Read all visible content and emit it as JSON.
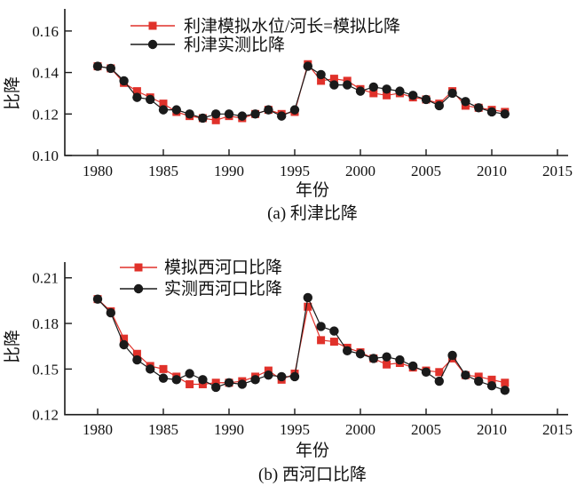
{
  "colors": {
    "simulated": "#e0312a",
    "observed": "#1a1a1a",
    "axis": "#1a1a1a",
    "background": "#ffffff"
  },
  "chart_data": [
    {
      "type": "line",
      "title": "(a) 利津比降",
      "xlabel": "年份",
      "ylabel": "比降",
      "grid": false,
      "legend_position": "top-inside",
      "xlim": [
        1977.5,
        2015.8
      ],
      "ylim": [
        0.1,
        0.17
      ],
      "xticks": [
        1980,
        1985,
        1990,
        1995,
        2000,
        2005,
        2010,
        2015
      ],
      "yticks": [
        "0.10",
        "0.12",
        "0.14",
        "0.16"
      ],
      "x": [
        1980,
        1981,
        1982,
        1983,
        1984,
        1985,
        1986,
        1987,
        1988,
        1989,
        1990,
        1991,
        1992,
        1993,
        1994,
        1995,
        1996,
        1997,
        1998,
        1999,
        2000,
        2001,
        2002,
        2003,
        2004,
        2005,
        2006,
        2007,
        2008,
        2009,
        2010,
        2011
      ],
      "series": [
        {
          "name": "利津模拟水位/河长=模拟比降",
          "marker": "square",
          "color": "#e0312a",
          "values": [
            0.143,
            0.142,
            0.135,
            0.131,
            0.128,
            0.125,
            0.121,
            0.119,
            0.118,
            0.117,
            0.119,
            0.118,
            0.12,
            0.122,
            0.12,
            0.121,
            0.144,
            0.136,
            0.137,
            0.136,
            0.132,
            0.13,
            0.129,
            0.13,
            0.128,
            0.127,
            0.125,
            0.131,
            0.124,
            0.123,
            0.122,
            0.121
          ]
        },
        {
          "name": "利津实测比降",
          "marker": "circle",
          "color": "#1a1a1a",
          "values": [
            0.143,
            0.142,
            0.136,
            0.128,
            0.127,
            0.122,
            0.122,
            0.12,
            0.118,
            0.12,
            0.12,
            0.119,
            0.12,
            0.122,
            0.119,
            0.122,
            0.143,
            0.139,
            0.134,
            0.134,
            0.131,
            0.133,
            0.132,
            0.131,
            0.129,
            0.127,
            0.124,
            0.13,
            0.126,
            0.123,
            0.121,
            0.12
          ]
        }
      ]
    },
    {
      "type": "line",
      "title": "(b) 西河口比降",
      "xlabel": "年份",
      "ylabel": "比降",
      "grid": false,
      "legend_position": "top-inside",
      "xlim": [
        1977.5,
        2015.8
      ],
      "ylim": [
        0.12,
        0.22
      ],
      "xticks": [
        1980,
        1985,
        1990,
        1995,
        2000,
        2005,
        2010,
        2015
      ],
      "yticks": [
        "0.12",
        "0.15",
        "0.18",
        "0.21"
      ],
      "x": [
        1980,
        1981,
        1982,
        1983,
        1984,
        1985,
        1986,
        1987,
        1988,
        1989,
        1990,
        1991,
        1992,
        1993,
        1994,
        1995,
        1996,
        1997,
        1998,
        1999,
        2000,
        2001,
        2002,
        2003,
        2004,
        2005,
        2006,
        2007,
        2008,
        2009,
        2010,
        2011
      ],
      "series": [
        {
          "name": "模拟西河口比降",
          "marker": "square",
          "color": "#e0312a",
          "values": [
            0.196,
            0.188,
            0.17,
            0.16,
            0.152,
            0.15,
            0.145,
            0.14,
            0.14,
            0.141,
            0.141,
            0.142,
            0.145,
            0.149,
            0.143,
            0.147,
            0.191,
            0.169,
            0.168,
            0.164,
            0.161,
            0.157,
            0.153,
            0.154,
            0.151,
            0.149,
            0.148,
            0.157,
            0.146,
            0.145,
            0.143,
            0.141
          ]
        },
        {
          "name": "实测西河口比降",
          "marker": "circle",
          "color": "#1a1a1a",
          "values": [
            0.196,
            0.187,
            0.166,
            0.156,
            0.15,
            0.144,
            0.143,
            0.147,
            0.143,
            0.138,
            0.141,
            0.14,
            0.143,
            0.146,
            0.145,
            0.145,
            0.197,
            0.178,
            0.175,
            0.162,
            0.16,
            0.157,
            0.158,
            0.156,
            0.152,
            0.148,
            0.142,
            0.159,
            0.146,
            0.142,
            0.139,
            0.136
          ]
        }
      ]
    }
  ]
}
